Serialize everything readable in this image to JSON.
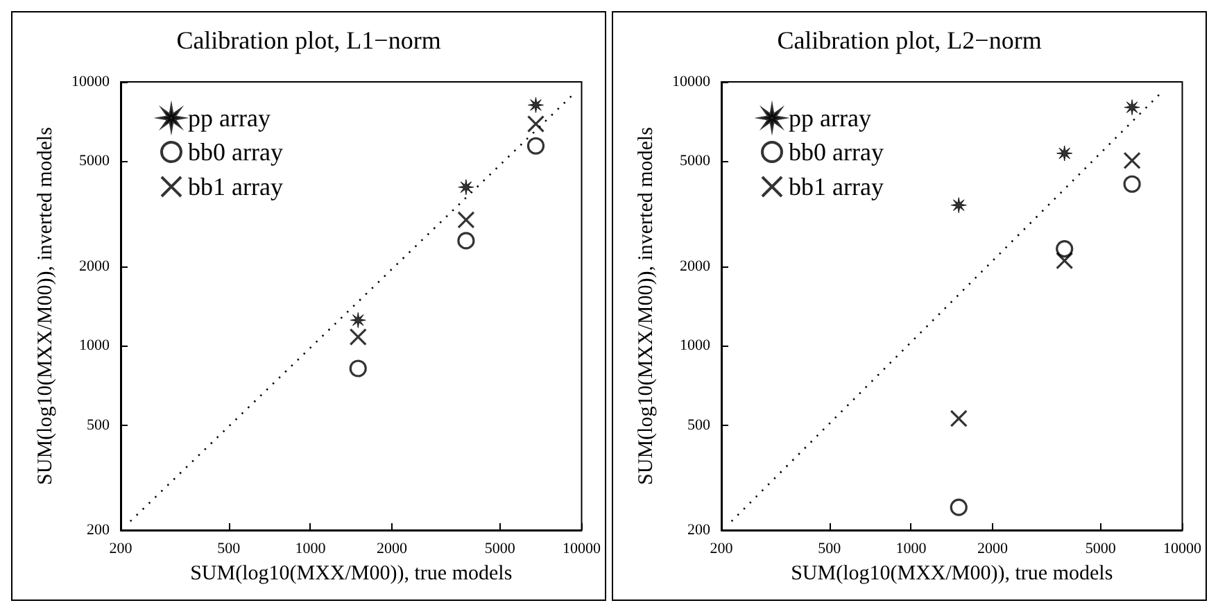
{
  "chart_data": [
    {
      "type": "scatter",
      "title": "Calibration plot, L1−norm",
      "xlabel": "SUM(log10(MXX/M00)), true models",
      "ylabel": "SUM(log10(MXX/M00)), inverted models",
      "log": "xy",
      "grid": false,
      "legend": "top left",
      "xlim": [
        200,
        10000
      ],
      "ylim": [
        200,
        10000
      ],
      "xticks": [
        200,
        500,
        1000,
        2000,
        5000,
        10000
      ],
      "yticks": [
        200,
        500,
        1000,
        2000,
        5000,
        10000
      ],
      "x": [
        1500,
        3750,
        6780
      ],
      "series": [
        {
          "name": "pp array",
          "color": "#000000",
          "marker": "star",
          "values": [
            1250,
            3990,
            8170
          ]
        },
        {
          "name": "bb0 array",
          "color": "#000000",
          "marker": "circle",
          "values": [
            820,
            2500,
            5720
          ]
        },
        {
          "name": "bb1 array",
          "color": "#000000",
          "marker": "cross",
          "values": [
            1080,
            3000,
            6930
          ]
        },
        {
          "type": "line",
          "color": "#000000",
          "marker": "none",
          "line_style": "dotted",
          "x": [
            217,
            9400
          ],
          "values": [
            216,
            9050
          ]
        }
      ]
    },
    {
      "type": "scatter",
      "title": "Calibration plot, L2−norm",
      "xlabel": "SUM(log10(MXX/M00)), true models",
      "ylabel": "SUM(log10(MXX/M00)), inverted models",
      "log": "xy",
      "grid": false,
      "legend": "top left",
      "xlim": [
        200,
        10000
      ],
      "ylim": [
        200,
        10000
      ],
      "xticks": [
        200,
        500,
        1000,
        2000,
        5000,
        10000
      ],
      "yticks": [
        200,
        500,
        1000,
        2000,
        5000,
        10000
      ],
      "x": [
        1500,
        3680,
        6530
      ],
      "series": [
        {
          "name": "pp array",
          "color": "#000000",
          "marker": "star",
          "values": [
            3410,
            5360,
            8010
          ]
        },
        {
          "name": "bb0 array",
          "color": "#000000",
          "marker": "circle",
          "values": [
            244,
            2330,
            4100
          ]
        },
        {
          "name": "bb1 array",
          "color": "#000000",
          "marker": "cross",
          "values": [
            530,
            2100,
            5030
          ]
        },
        {
          "type": "line",
          "color": "#000000",
          "marker": "none",
          "line_style": "dotted",
          "x": [
            218,
            8400
          ],
          "values": [
            216,
            9150
          ]
        }
      ]
    }
  ]
}
